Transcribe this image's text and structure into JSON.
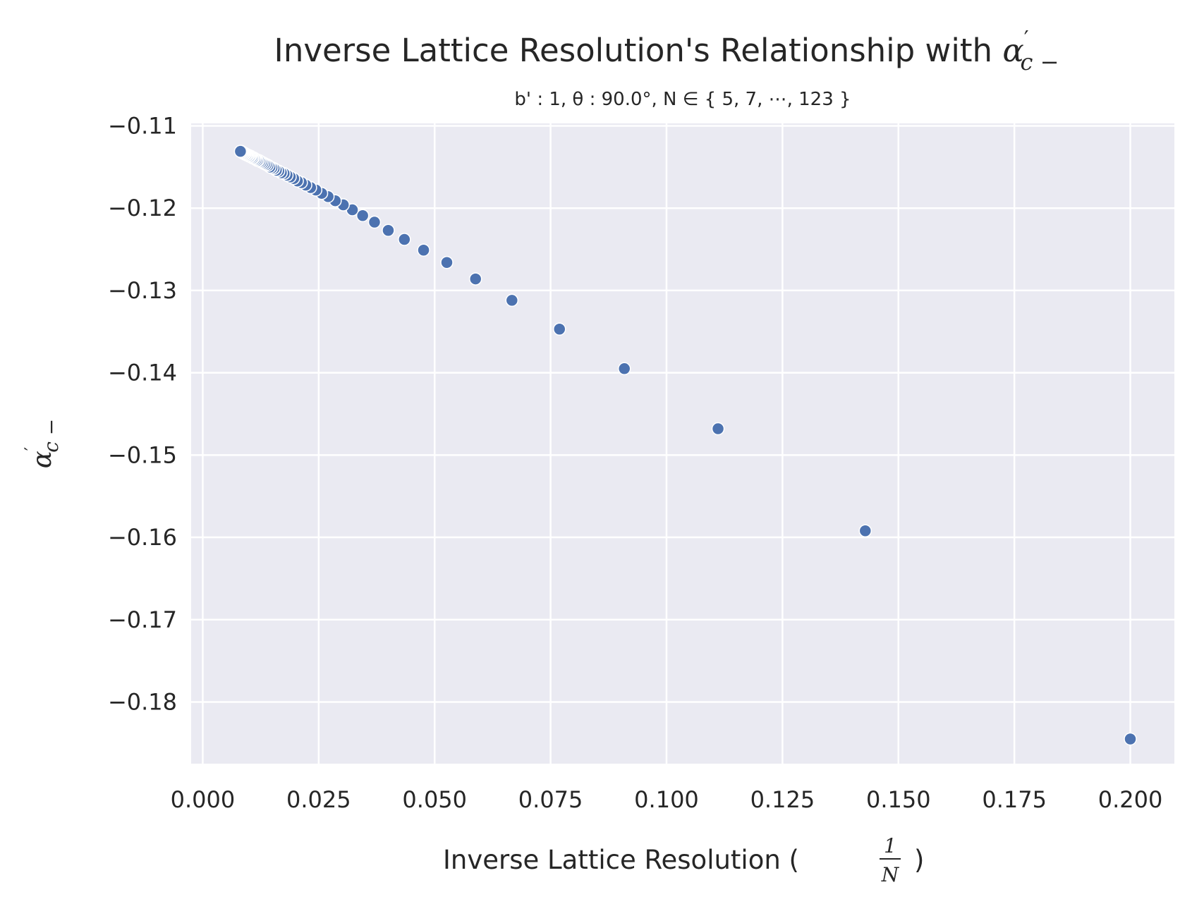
{
  "chart_data": {
    "type": "scatter",
    "title": {
      "text": "Inverse Lattice Resolution's Relationship with ",
      "math_symbol": "α",
      "math_prime": "′",
      "math_subscript": "c −"
    },
    "subtitle": "b' : 1,   θ : 90.0°,   N ∈ { 5, 7, ⋯, 123 }",
    "xlabel": {
      "text": "Inverse Lattice Resolution (",
      "frac_num": "1",
      "frac_den": "N",
      "close": ")"
    },
    "ylabel": {
      "symbol": "α",
      "prime": "′",
      "subscript": "c −"
    },
    "xlim": [
      -0.0025,
      0.2095
    ],
    "ylim": [
      -0.1875,
      -0.1097
    ],
    "xticks": [
      0.0,
      0.025,
      0.05,
      0.075,
      0.1,
      0.125,
      0.15,
      0.175,
      0.2
    ],
    "xtick_labels": [
      "0.000",
      "0.025",
      "0.050",
      "0.075",
      "0.100",
      "0.125",
      "0.150",
      "0.175",
      "0.200"
    ],
    "yticks": [
      -0.11,
      -0.12,
      -0.13,
      -0.14,
      -0.15,
      -0.16,
      -0.17,
      -0.18
    ],
    "ytick_labels": [
      "−0.11",
      "−0.12",
      "−0.13",
      "−0.14",
      "−0.15",
      "−0.16",
      "−0.17",
      "−0.18"
    ],
    "grid": true,
    "series": [
      {
        "marker_color": "#4c72b0",
        "marker_edge_color": "#ffffff",
        "x": [
          0.2,
          0.142857,
          0.111111,
          0.090909,
          0.076923,
          0.066667,
          0.058824,
          0.052632,
          0.047619,
          0.043478,
          0.04,
          0.037037,
          0.034483,
          0.032258,
          0.030303,
          0.028571,
          0.027027,
          0.025641,
          0.02439,
          0.023256,
          0.022222,
          0.021277,
          0.020408,
          0.019608,
          0.018868,
          0.018182,
          0.017544,
          0.016949,
          0.016393,
          0.015873,
          0.015385,
          0.014925,
          0.014493,
          0.014085,
          0.013699,
          0.013333,
          0.012987,
          0.012658,
          0.012346,
          0.012048,
          0.011765,
          0.011494,
          0.011236,
          0.010989,
          0.010753,
          0.010526,
          0.010309,
          0.010101,
          0.009901,
          0.009709,
          0.009524,
          0.009346,
          0.009174,
          0.009009,
          0.00885,
          0.008696,
          0.008547,
          0.008403,
          0.008264,
          0.00813
        ],
        "y": [
          -0.1845,
          -0.1592,
          -0.1468,
          -0.1395,
          -0.1347,
          -0.1312,
          -0.1286,
          -0.1266,
          -0.1251,
          -0.1238,
          -0.1227,
          -0.1217,
          -0.1209,
          -0.1202,
          -0.1196,
          -0.1191,
          -0.1186,
          -0.1182,
          -0.1178,
          -0.1175,
          -0.1172,
          -0.1169,
          -0.1167,
          -0.1164,
          -0.1162,
          -0.116,
          -0.1158,
          -0.1157,
          -0.1155,
          -0.1154,
          -0.1152,
          -0.1151,
          -0.115,
          -0.1148,
          -0.1147,
          -0.1146,
          -0.1145,
          -0.1144,
          -0.1143,
          -0.1142,
          -0.1142,
          -0.1141,
          -0.114,
          -0.1139,
          -0.1139,
          -0.1138,
          -0.1137,
          -0.1137,
          -0.1136,
          -0.1136,
          -0.1135,
          -0.1135,
          -0.1134,
          -0.1134,
          -0.1133,
          -0.1133,
          -0.1132,
          -0.1132,
          -0.1131,
          -0.1131
        ]
      }
    ]
  }
}
